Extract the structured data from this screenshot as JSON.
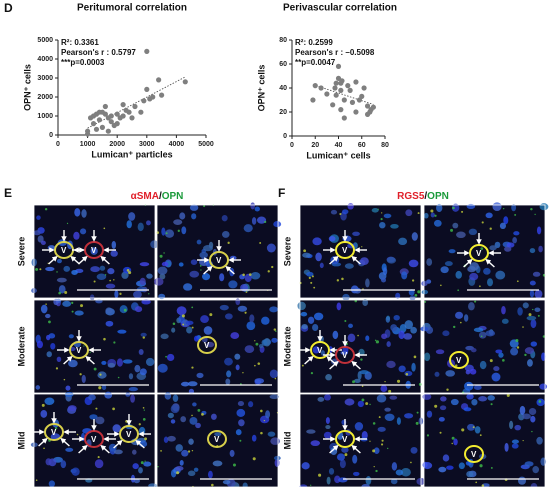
{
  "panel_labels": [
    "D",
    "E",
    "F"
  ],
  "chart_data": [
    {
      "type": "scatter",
      "title": "Peritumoral correlation",
      "x_label": "Lumican⁺ particles",
      "y_label": "OPN⁺ cells",
      "annotations": [
        "R²: 0.3361",
        "Pearson's r : 0.5797",
        "***p=0.0003"
      ],
      "x": [
        1000,
        1100,
        1200,
        1200,
        1300,
        1300,
        1400,
        1500,
        1500,
        1600,
        1700,
        1700,
        1800,
        1800,
        1900,
        2000,
        2000,
        2100,
        2200,
        2300,
        2400,
        2500,
        2600,
        2800,
        2900,
        3000,
        3000,
        3100,
        3200,
        3400,
        3500,
        4300,
        1000,
        1600,
        2200,
        1400
      ],
      "values": [
        200,
        900,
        600,
        1000,
        300,
        1100,
        800,
        1200,
        400,
        1100,
        900,
        200,
        700,
        1000,
        500,
        1100,
        600,
        900,
        1000,
        1300,
        1200,
        900,
        1500,
        1200,
        1800,
        2400,
        4400,
        1900,
        2000,
        2900,
        2100,
        2800,
        50,
        1500,
        1600,
        1200
      ],
      "color": "#7f7f7f",
      "trendline": true,
      "xlim": [
        0,
        5000
      ],
      "xticks": [
        0,
        1000,
        2000,
        3000,
        4000,
        5000
      ],
      "ylim": [
        0,
        5000
      ],
      "yticks": [
        0,
        1000,
        2000,
        3000,
        4000,
        5000
      ]
    },
    {
      "type": "scatter",
      "title": "Perivascular correlation",
      "x_label": "Lumican⁺ cells",
      "y_label": "OPN⁺ cells",
      "annotations": [
        "R²: 0.2599",
        "Pearson's r : –0.5098",
        "**p=0.0047"
      ],
      "x": [
        18,
        20,
        25,
        30,
        35,
        37,
        38,
        40,
        40,
        42,
        42,
        43,
        45,
        45,
        48,
        50,
        52,
        55,
        55,
        58,
        60,
        62,
        65,
        65,
        67,
        68,
        70,
        42,
        38
      ],
      "values": [
        30,
        42,
        40,
        35,
        26,
        40,
        44,
        48,
        58,
        38,
        22,
        46,
        30,
        15,
        42,
        38,
        28,
        45,
        20,
        30,
        33,
        40,
        25,
        18,
        20,
        22,
        24,
        44,
        34
      ],
      "color": "#7f7f7f",
      "trendline": true,
      "xlim": [
        0,
        80
      ],
      "xticks": [
        0,
        20,
        40,
        60,
        80
      ],
      "ylim": [
        0,
        80
      ],
      "yticks": [
        0,
        20,
        40,
        60,
        80
      ]
    }
  ],
  "micrographs": {
    "E": {
      "stain": [
        "αSMA",
        "/",
        "OPN"
      ],
      "stain_colors": [
        "#e0202a",
        "#111111",
        "#1a9a3a"
      ]
    },
    "F": {
      "stain": [
        "RGS5",
        "/",
        "OPN"
      ],
      "stain_colors": [
        "#e0202a",
        "#111111",
        "#1a9a3a"
      ]
    },
    "rows": [
      "Severe",
      "Moderate",
      "Mild"
    ],
    "vessel_label": "V"
  }
}
